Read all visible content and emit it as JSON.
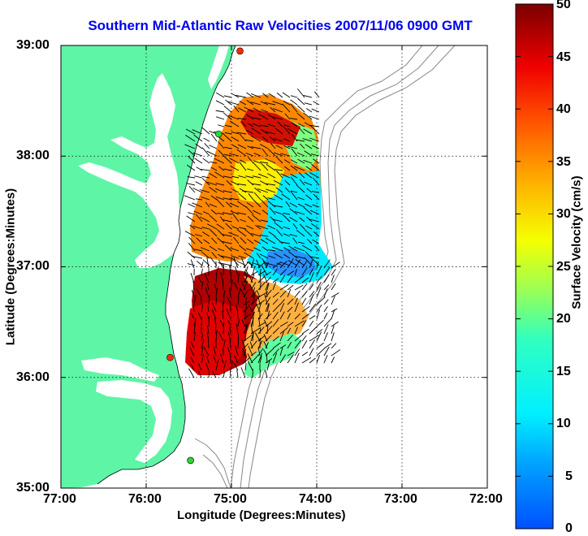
{
  "title": "Southern Mid-Atlantic Raw Velocities 2007/11/06 0900 GMT",
  "map": {
    "xlabel": "Longitude (Degrees:Minutes)",
    "ylabel": "Latitude (Degrees:Minutes)",
    "lon_ticks": [
      "77:00",
      "76:00",
      "75:00",
      "74:00",
      "73:00",
      "72:00"
    ],
    "lat_ticks": [
      "39:00",
      "38:00",
      "37:00",
      "36:00",
      "35:00"
    ],
    "lon_range": [
      -77,
      -72
    ],
    "lat_range": [
      35,
      39
    ],
    "grid": true,
    "land_color": "#5ef5a6",
    "water_color": "#ffffff"
  },
  "colorbar": {
    "label": "Surface Velocity (cm/s)",
    "ticks": [
      "0",
      "5",
      "10",
      "15",
      "20",
      "25",
      "30",
      "35",
      "40",
      "45",
      "50"
    ],
    "min": 0,
    "max": 50,
    "colormap": "jet"
  },
  "stations": [
    {
      "color": "#ff2a00",
      "lon": -74.9,
      "lat": 38.95
    },
    {
      "color": "#2ed62e",
      "lon": -75.15,
      "lat": 38.2
    },
    {
      "color": "#ff2a00",
      "lon": -75.72,
      "lat": 36.18
    },
    {
      "color": "#2ed62e",
      "lon": -75.48,
      "lat": 35.25
    }
  ]
}
